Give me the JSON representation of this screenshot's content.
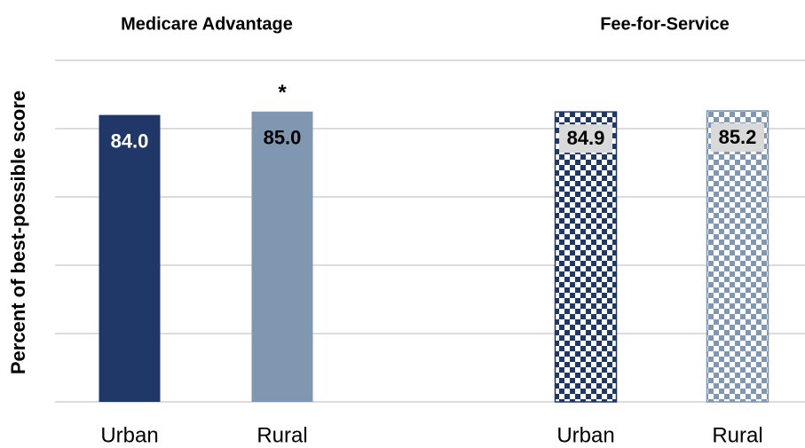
{
  "chart_data": {
    "type": "bar",
    "ylabel": "Percent of best-possible score",
    "ylim": [
      0,
      100
    ],
    "yticks": [
      0,
      20,
      40,
      60,
      80,
      100
    ],
    "grid": true,
    "groups": [
      {
        "title": "Medicare Advantage",
        "fill": "solid",
        "categories": [
          "Urban",
          "Rural"
        ],
        "values": [
          84.0,
          85.0
        ],
        "value_labels": [
          "84.0",
          "85.0"
        ],
        "colors": [
          "#1f3868",
          "#8097b1"
        ],
        "annotations": [
          null,
          "*"
        ]
      },
      {
        "title": "Fee-for-Service",
        "fill": "checkered",
        "categories": [
          "Urban",
          "Rural"
        ],
        "values": [
          84.9,
          85.2
        ],
        "value_labels": [
          "84.9",
          "85.2"
        ],
        "colors": [
          "#1f3868",
          "#8097b1"
        ],
        "annotations": [
          null,
          null
        ]
      }
    ]
  }
}
